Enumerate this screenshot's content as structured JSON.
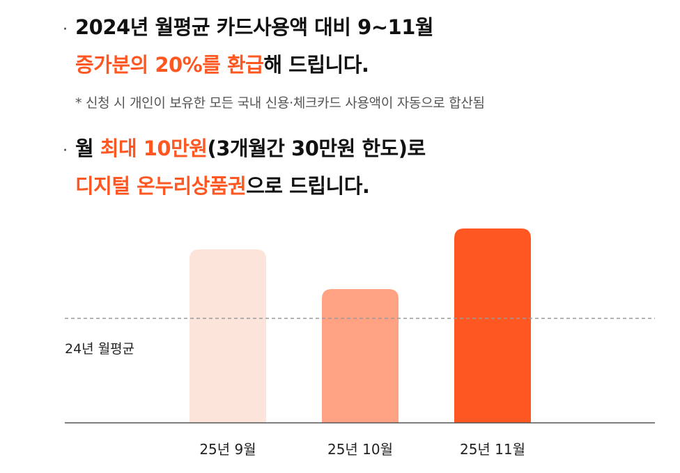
{
  "headline1": {
    "bullet": "·",
    "line1": "2024년 월평균 카드사용액 대비 9~11월",
    "line2_highlight": "증가분의 20%를 환급",
    "line2_rest": "해 드립니다."
  },
  "note": "* 신청 시 개인이 보유한 모든 국내 신용·체크카드 사용액이 자동으로 합산됨",
  "headline2": {
    "bullet": "·",
    "line1_pre": "월 ",
    "line1_highlight": "최대 10만원",
    "line1_rest": "(3개월간 30만원 한도)로",
    "line2_highlight": "디지털 온누리상품권",
    "line2_rest": "으로 드립니다."
  },
  "colors": {
    "accent": "#ff5722",
    "bar_sep": "#fde4da",
    "bar_oct": "#ffa283",
    "bar_nov": "#ff5722",
    "baseline": "#555555",
    "avg_line": "#9a9a9a"
  },
  "chart_data": {
    "type": "bar",
    "categories": [
      "25년 9월",
      "25년 10월",
      "25년 11월"
    ],
    "values": [
      1.66,
      1.28,
      1.86
    ],
    "reference_line": {
      "label": "24년 월평균",
      "value": 1.0,
      "style": "dashed"
    },
    "ylim": [
      0,
      2.0
    ],
    "axis_labels_shown": false
  }
}
